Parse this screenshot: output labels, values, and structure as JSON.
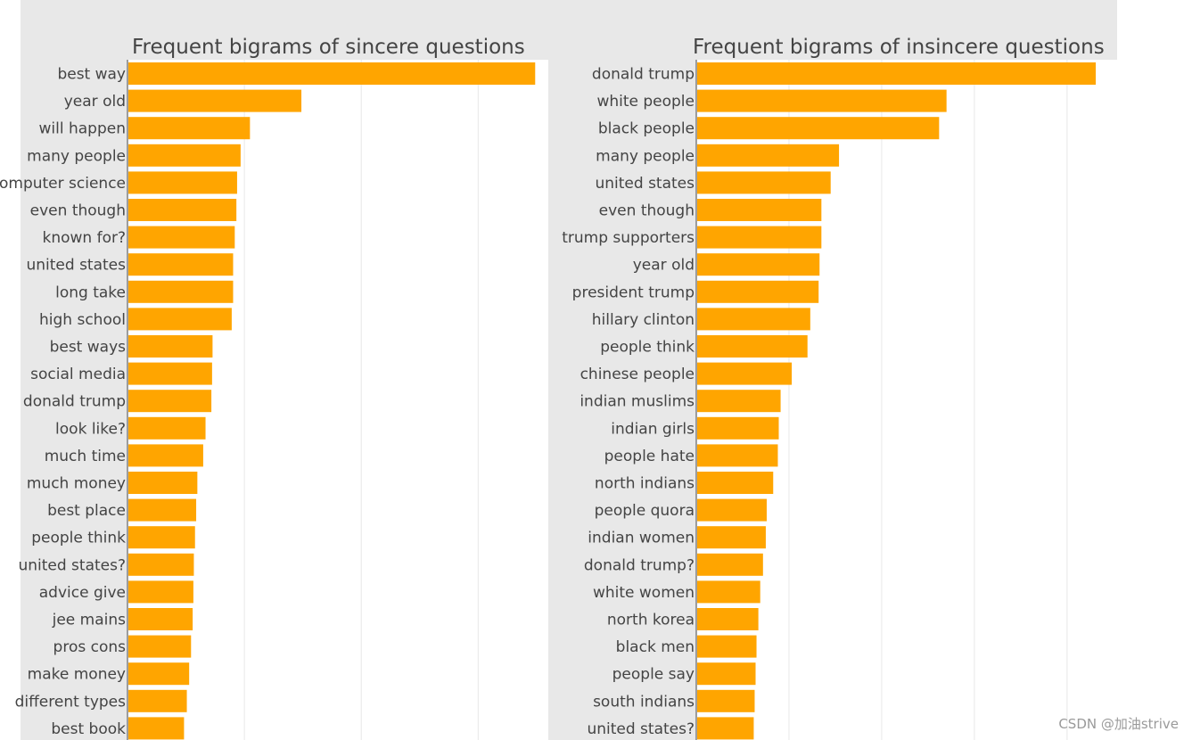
{
  "colors": {
    "bar": "#ffa500",
    "panel_bg": "#e8e8e8",
    "plot_bg": "#ffffff",
    "grid": "#e8e8e8",
    "axis": "#444444"
  },
  "watermark": "CSDN @加油strive",
  "chart_data": [
    {
      "type": "bar",
      "orientation": "horizontal",
      "title": "Frequent bigrams of sincere questions",
      "grid": true,
      "categories": [
        "best way",
        "year old",
        "will happen",
        "many people",
        "computer science",
        "even though",
        "known for?",
        "united states",
        "long take",
        "high school",
        "best ways",
        "social media",
        "donald trump",
        "look like?",
        "much time",
        "much money",
        "best place",
        "people think",
        "united states?",
        "advice give",
        "jee mains",
        "pros cons",
        "make money",
        "different types",
        "best book"
      ],
      "values": [
        17400,
        7400,
        5200,
        4800,
        4650,
        4620,
        4550,
        4480,
        4480,
        4420,
        3600,
        3580,
        3550,
        3300,
        3200,
        2950,
        2900,
        2850,
        2800,
        2780,
        2750,
        2680,
        2600,
        2500,
        2380
      ],
      "xlim": [
        0,
        18000
      ]
    },
    {
      "type": "bar",
      "orientation": "horizontal",
      "title": "Frequent bigrams of insincere questions",
      "grid": true,
      "categories": [
        "donald trump",
        "white people",
        "black people",
        "many people",
        "united states",
        "even though",
        "trump supporters",
        "year old",
        "president trump",
        "hillary clinton",
        "people think",
        "chinese people",
        "indian muslims",
        "indian girls",
        "people hate",
        "north indians",
        "people quora",
        "indian women",
        "donald trump?",
        "white women",
        "north korea",
        "black men",
        "people say",
        "south indians",
        "united states?"
      ],
      "values": [
        2150,
        1345,
        1305,
        765,
        720,
        670,
        670,
        660,
        655,
        610,
        595,
        510,
        450,
        440,
        435,
        410,
        375,
        370,
        355,
        340,
        330,
        320,
        315,
        310,
        305
      ],
      "xlim": [
        0,
        2270
      ]
    }
  ]
}
